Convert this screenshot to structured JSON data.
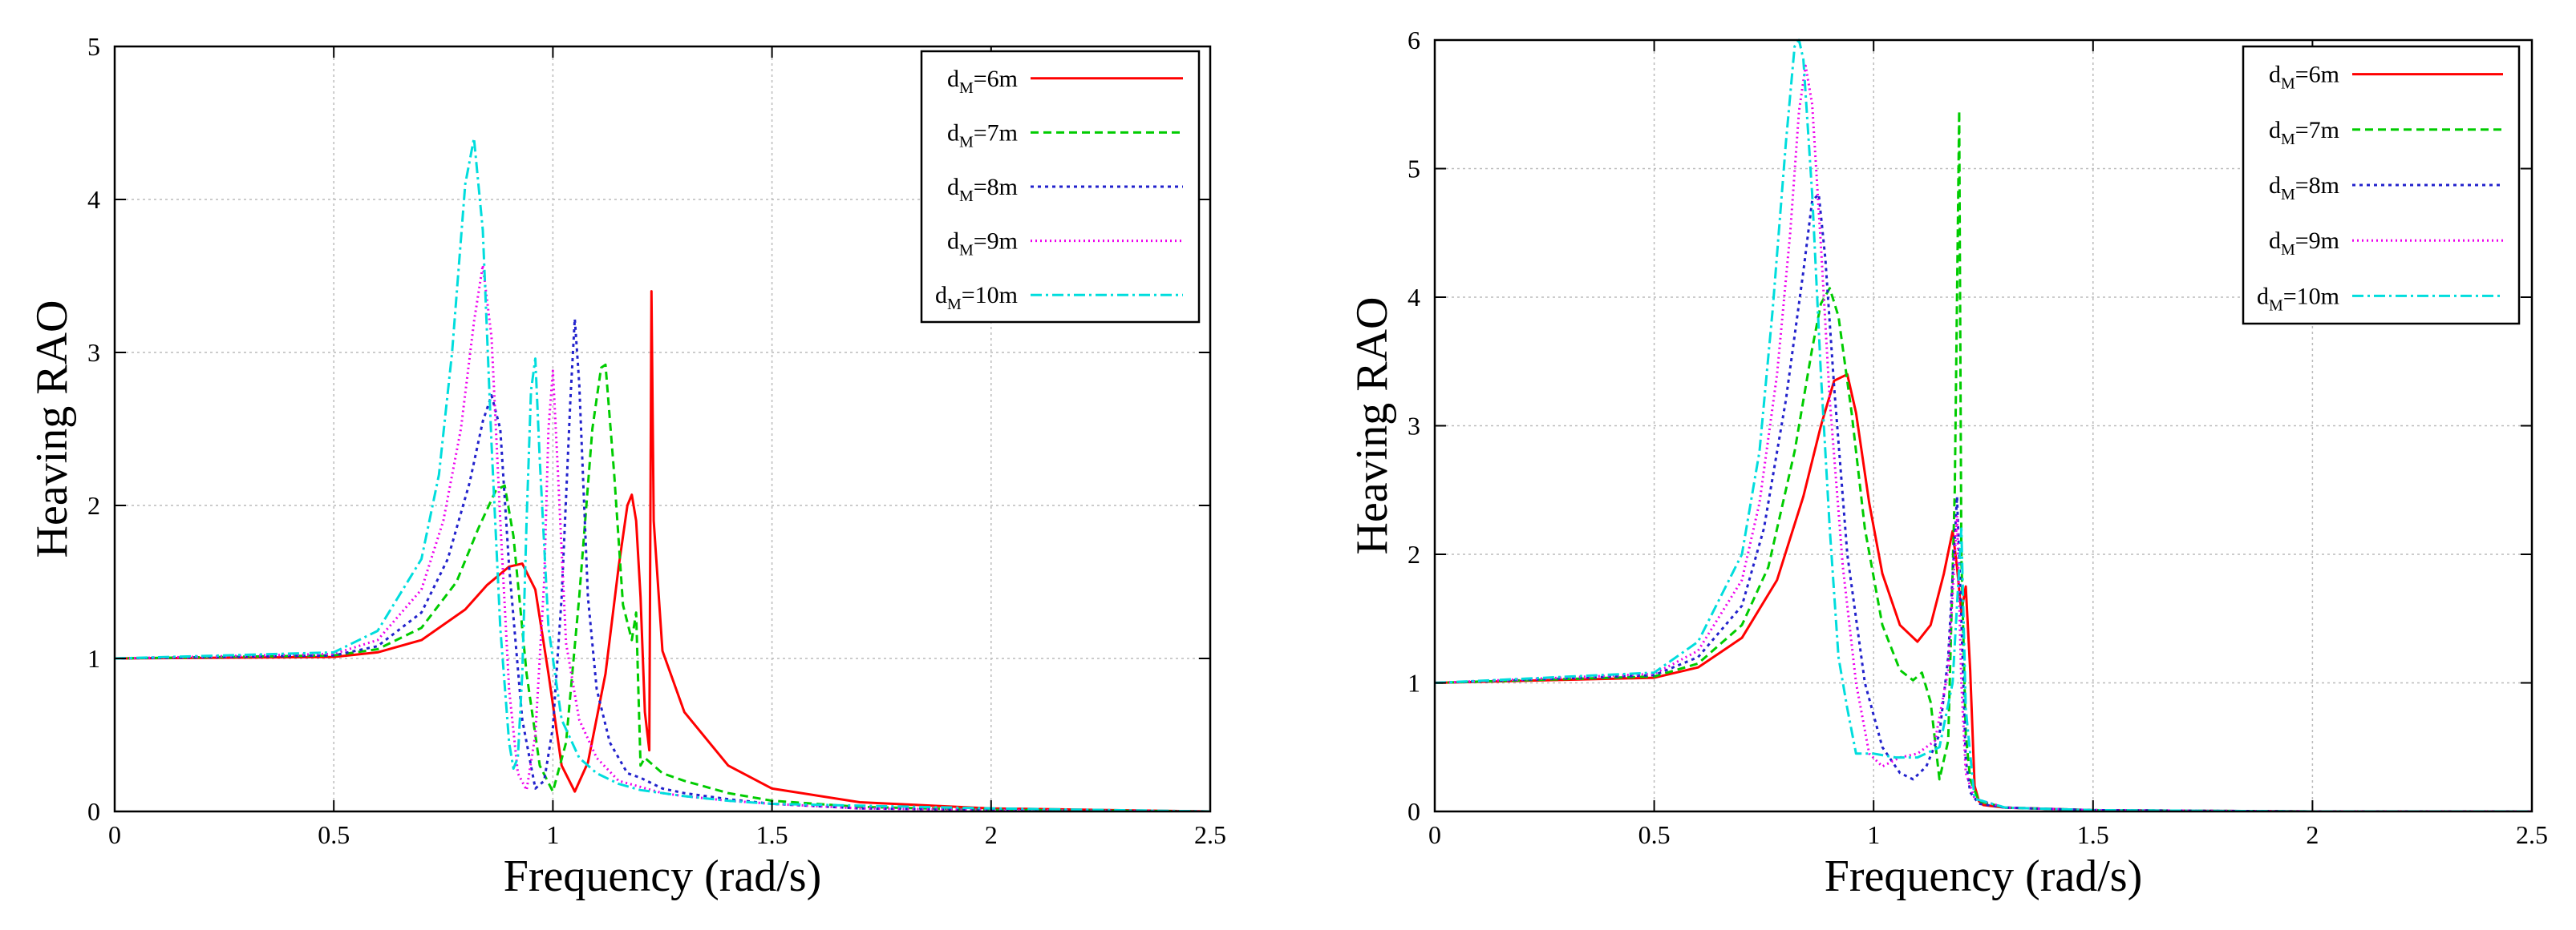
{
  "chart_data": [
    {
      "type": "line",
      "title": "",
      "xlabel": "Frequency (rad/s)",
      "ylabel": "Heaving RAO",
      "xlim": [
        0,
        2.5
      ],
      "ylim": [
        0,
        5
      ],
      "xticks": [
        "0",
        "0.5",
        "1",
        "1.5",
        "2",
        "2.5"
      ],
      "yticks": [
        "0",
        "1",
        "2",
        "3",
        "4",
        "5"
      ],
      "grid": true,
      "legend_position": "top-right",
      "series": [
        {
          "name": "dM=6m",
          "name_main": "d",
          "name_sub": "M",
          "name_tail": "=6m",
          "color": "#ff0000",
          "dash": "",
          "x": [
            0,
            0.5,
            0.6,
            0.7,
            0.8,
            0.85,
            0.9,
            0.93,
            0.96,
            0.99,
            1.02,
            1.05,
            1.08,
            1.12,
            1.15,
            1.17,
            1.18,
            1.19,
            1.2,
            1.21,
            1.22,
            1.225,
            1.23,
            1.25,
            1.3,
            1.4,
            1.5,
            1.7,
            2.0,
            2.5
          ],
          "y": [
            1.0,
            1.01,
            1.04,
            1.12,
            1.32,
            1.48,
            1.6,
            1.62,
            1.45,
            0.9,
            0.3,
            0.13,
            0.32,
            0.9,
            1.6,
            2.0,
            2.07,
            1.9,
            1.4,
            0.65,
            0.4,
            3.4,
            1.9,
            1.05,
            0.65,
            0.3,
            0.15,
            0.06,
            0.02,
            0.0
          ]
        },
        {
          "name": "dM=7m",
          "name_main": "d",
          "name_sub": "M",
          "name_tail": "=7m",
          "color": "#00cc00",
          "dash": "10,6",
          "x": [
            0,
            0.5,
            0.6,
            0.7,
            0.78,
            0.83,
            0.87,
            0.89,
            0.91,
            0.94,
            0.97,
            1.0,
            1.03,
            1.06,
            1.09,
            1.11,
            1.12,
            1.14,
            1.16,
            1.18,
            1.19,
            1.2,
            1.21,
            1.25,
            1.3,
            1.4,
            1.5,
            1.7,
            2.0,
            2.5
          ],
          "y": [
            1.0,
            1.02,
            1.06,
            1.2,
            1.5,
            1.85,
            2.1,
            2.13,
            1.8,
            0.9,
            0.3,
            0.13,
            0.45,
            1.4,
            2.5,
            2.9,
            2.92,
            2.2,
            1.35,
            1.12,
            1.3,
            0.3,
            0.35,
            0.25,
            0.2,
            0.12,
            0.07,
            0.03,
            0.01,
            0.0
          ]
        },
        {
          "name": "dM=8m",
          "name_main": "d",
          "name_sub": "M",
          "name_tail": "=8m",
          "color": "#2222cc",
          "dash": "4,5",
          "x": [
            0,
            0.5,
            0.6,
            0.7,
            0.76,
            0.81,
            0.84,
            0.86,
            0.88,
            0.9,
            0.93,
            0.96,
            0.98,
            1.0,
            1.02,
            1.04,
            1.05,
            1.06,
            1.08,
            1.1,
            1.13,
            1.17,
            1.2,
            1.25,
            1.3,
            1.4,
            1.5,
            1.7,
            2.0,
            2.5
          ],
          "y": [
            1.0,
            1.02,
            1.08,
            1.3,
            1.65,
            2.15,
            2.55,
            2.72,
            2.5,
            1.6,
            0.6,
            0.15,
            0.2,
            0.55,
            1.4,
            2.7,
            3.22,
            2.8,
            1.4,
            0.8,
            0.45,
            0.25,
            0.22,
            0.15,
            0.12,
            0.08,
            0.05,
            0.02,
            0.01,
            0.0
          ]
        },
        {
          "name": "dM=9m",
          "name_main": "d",
          "name_sub": "M",
          "name_tail": "=9m",
          "color": "#ee00ee",
          "dash": "2,4",
          "x": [
            0,
            0.5,
            0.6,
            0.7,
            0.75,
            0.79,
            0.82,
            0.84,
            0.86,
            0.88,
            0.9,
            0.92,
            0.94,
            0.96,
            0.98,
            0.99,
            1.0,
            1.01,
            1.03,
            1.06,
            1.1,
            1.15,
            1.2,
            1.25,
            1.3,
            1.4,
            1.5,
            1.7,
            2.0,
            2.5
          ],
          "y": [
            1.0,
            1.03,
            1.12,
            1.45,
            1.9,
            2.5,
            3.2,
            3.57,
            3.1,
            1.9,
            0.8,
            0.25,
            0.14,
            0.5,
            1.5,
            2.5,
            2.88,
            2.3,
            1.1,
            0.6,
            0.35,
            0.2,
            0.16,
            0.12,
            0.1,
            0.07,
            0.05,
            0.02,
            0.01,
            0.0
          ]
        },
        {
          "name": "dM=10m",
          "name_main": "d",
          "name_sub": "M",
          "name_tail": "=10m",
          "color": "#00dddd",
          "dash": "14,5,3,5",
          "x": [
            0,
            0.5,
            0.6,
            0.7,
            0.74,
            0.77,
            0.8,
            0.82,
            0.84,
            0.86,
            0.88,
            0.9,
            0.91,
            0.92,
            0.93,
            0.94,
            0.95,
            0.96,
            0.97,
            0.99,
            1.02,
            1.06,
            1.1,
            1.15,
            1.2,
            1.3,
            1.4,
            1.5,
            2.0,
            2.5
          ],
          "y": [
            1.0,
            1.04,
            1.18,
            1.65,
            2.2,
            3.0,
            4.1,
            4.4,
            3.8,
            2.4,
            1.2,
            0.45,
            0.28,
            0.35,
            0.9,
            1.9,
            2.75,
            2.96,
            2.3,
            1.2,
            0.6,
            0.35,
            0.25,
            0.18,
            0.14,
            0.1,
            0.07,
            0.05,
            0.02,
            0.0
          ]
        }
      ]
    },
    {
      "type": "line",
      "title": "",
      "xlabel": "Frequency (rad/s)",
      "ylabel": "Heaving RAO",
      "xlim": [
        0,
        2.5
      ],
      "ylim": [
        0,
        6
      ],
      "xticks": [
        "0",
        "0.5",
        "1",
        "1.5",
        "2",
        "2.5"
      ],
      "yticks": [
        "0",
        "1",
        "2",
        "3",
        "4",
        "5",
        "6"
      ],
      "grid": true,
      "legend_position": "top-right",
      "series": [
        {
          "name": "dM=6m",
          "name_main": "d",
          "name_sub": "M",
          "name_tail": "=6m",
          "color": "#ff0000",
          "dash": "",
          "x": [
            0,
            0.5,
            0.6,
            0.7,
            0.78,
            0.84,
            0.88,
            0.91,
            0.94,
            0.96,
            0.99,
            1.02,
            1.06,
            1.1,
            1.13,
            1.16,
            1.18,
            1.19,
            1.2,
            1.21,
            1.22,
            1.23,
            1.24,
            1.25,
            1.3,
            1.5,
            2.0,
            2.5
          ],
          "y": [
            1.0,
            1.04,
            1.12,
            1.35,
            1.8,
            2.45,
            3.0,
            3.35,
            3.4,
            3.1,
            2.4,
            1.85,
            1.45,
            1.32,
            1.45,
            1.85,
            2.18,
            1.9,
            1.55,
            1.75,
            1.1,
            0.2,
            0.08,
            0.05,
            0.03,
            0.01,
            0.0,
            0.0
          ]
        },
        {
          "name": "dM=7m",
          "name_main": "d",
          "name_sub": "M",
          "name_tail": "=7m",
          "color": "#00cc00",
          "dash": "10,6",
          "x": [
            0,
            0.5,
            0.6,
            0.7,
            0.76,
            0.82,
            0.86,
            0.88,
            0.9,
            0.92,
            0.95,
            0.98,
            1.02,
            1.06,
            1.09,
            1.11,
            1.13,
            1.15,
            1.17,
            1.185,
            1.195,
            1.2,
            1.21,
            1.22,
            1.24,
            1.3,
            1.5,
            2.0,
            2.5
          ],
          "y": [
            1.0,
            1.05,
            1.15,
            1.45,
            1.9,
            2.8,
            3.6,
            3.95,
            4.07,
            3.85,
            3.1,
            2.2,
            1.45,
            1.1,
            1.02,
            1.08,
            0.85,
            0.25,
            0.55,
            2.5,
            5.45,
            2.0,
            0.6,
            0.25,
            0.08,
            0.03,
            0.01,
            0.0,
            0.0
          ]
        },
        {
          "name": "dM=8m",
          "name_main": "d",
          "name_sub": "M",
          "name_tail": "=8m",
          "color": "#2222cc",
          "dash": "4,5",
          "x": [
            0,
            0.5,
            0.6,
            0.7,
            0.75,
            0.8,
            0.84,
            0.86,
            0.875,
            0.89,
            0.91,
            0.94,
            0.98,
            1.02,
            1.06,
            1.09,
            1.12,
            1.15,
            1.17,
            1.19,
            1.2,
            1.21,
            1.22,
            1.24,
            1.3,
            1.5,
            2.0,
            2.5
          ],
          "y": [
            1.0,
            1.06,
            1.2,
            1.6,
            2.2,
            3.2,
            4.2,
            4.75,
            4.8,
            4.3,
            3.3,
            2.0,
            1.0,
            0.5,
            0.3,
            0.25,
            0.35,
            0.6,
            1.2,
            2.45,
            1.5,
            0.4,
            0.15,
            0.06,
            0.03,
            0.01,
            0.0,
            0.0
          ]
        },
        {
          "name": "dM=9m",
          "name_main": "d",
          "name_sub": "M",
          "name_tail": "=9m",
          "color": "#ee00ee",
          "dash": "2,4",
          "x": [
            0,
            0.5,
            0.6,
            0.7,
            0.74,
            0.78,
            0.81,
            0.83,
            0.845,
            0.86,
            0.88,
            0.9,
            0.93,
            0.96,
            0.99,
            1.02,
            1.06,
            1.1,
            1.14,
            1.17,
            1.19,
            1.2,
            1.21,
            1.23,
            1.3,
            1.5,
            2.0,
            2.5
          ],
          "y": [
            1.0,
            1.07,
            1.25,
            1.8,
            2.4,
            3.4,
            4.5,
            5.45,
            5.8,
            5.5,
            4.4,
            3.2,
            1.9,
            1.0,
            0.45,
            0.35,
            0.42,
            0.45,
            0.55,
            1.1,
            2.3,
            1.0,
            0.3,
            0.1,
            0.03,
            0.01,
            0.0,
            0.0
          ]
        },
        {
          "name": "dM=10m",
          "name_main": "d",
          "name_sub": "M",
          "name_tail": "=10m",
          "color": "#00dddd",
          "dash": "14,5,3,5",
          "x": [
            0,
            0.5,
            0.6,
            0.7,
            0.74,
            0.77,
            0.8,
            0.82,
            0.83,
            0.84,
            0.86,
            0.88,
            0.9,
            0.92,
            0.94,
            0.96,
            1.0,
            1.05,
            1.1,
            1.15,
            1.18,
            1.2,
            1.21,
            1.23,
            1.3,
            1.5,
            2.0,
            2.5
          ],
          "y": [
            1.0,
            1.08,
            1.32,
            2.0,
            2.8,
            3.9,
            5.2,
            5.95,
            6.0,
            5.85,
            4.8,
            3.4,
            2.2,
            1.2,
            0.8,
            0.45,
            0.45,
            0.42,
            0.42,
            0.5,
            1.0,
            2.2,
            0.8,
            0.1,
            0.03,
            0.01,
            0.0,
            0.0
          ]
        }
      ]
    }
  ]
}
